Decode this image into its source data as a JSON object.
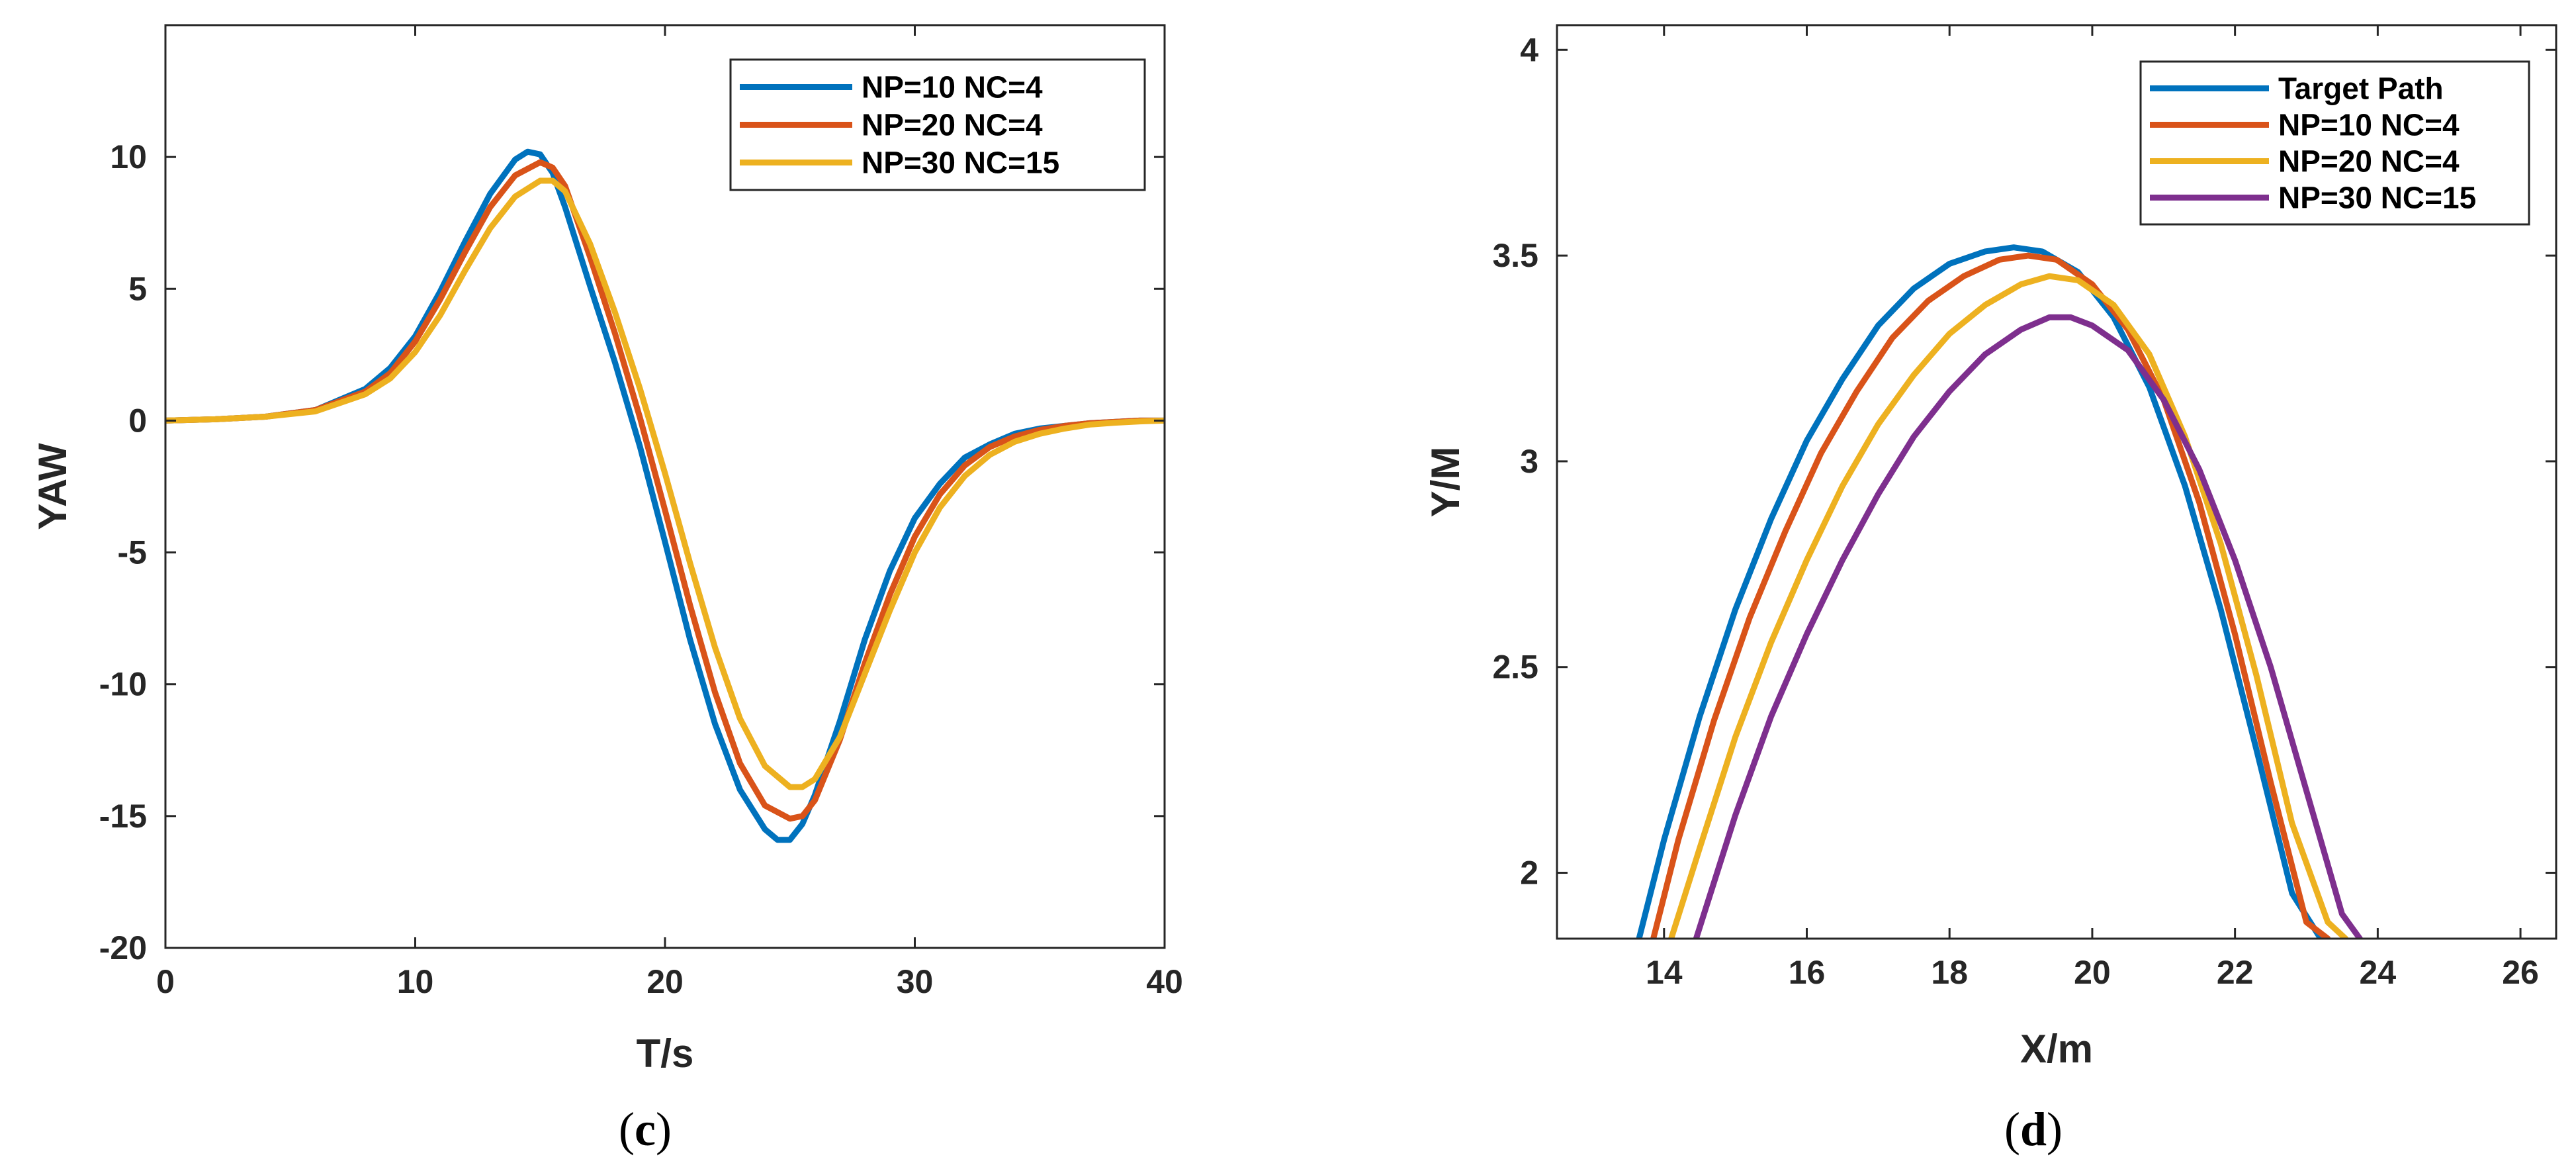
{
  "colors": {
    "blue": "#0072BD",
    "orange": "#D95319",
    "yellow": "#EDB120",
    "purple": "#7E2F8E",
    "axis": "#262626"
  },
  "chart_data": [
    {
      "id": "c",
      "type": "line",
      "caption_open": "(",
      "caption_letter": "c",
      "caption_close": ")",
      "title": "",
      "xlabel": "T/s",
      "ylabel": "YAW",
      "xlim": [
        0,
        40
      ],
      "ylim": [
        -20,
        15
      ],
      "xticks": [
        0,
        10,
        20,
        30,
        40
      ],
      "yticks": [
        -20,
        -15,
        -10,
        -5,
        0,
        5,
        10
      ],
      "grid": false,
      "legend_position": "top-right",
      "series": [
        {
          "name": "NP=10 NC=4",
          "color": "#0072BD",
          "x": [
            0,
            2,
            4,
            6,
            8,
            9,
            10,
            11,
            12,
            13,
            14,
            14.5,
            15,
            15.5,
            16,
            17,
            18,
            19,
            20,
            21,
            22,
            23,
            24,
            24.5,
            25,
            25.5,
            26,
            27,
            28,
            29,
            30,
            31,
            32,
            33,
            34,
            35,
            36,
            37,
            38,
            39,
            40
          ],
          "y": [
            0,
            0.05,
            0.15,
            0.4,
            1.2,
            2.0,
            3.2,
            4.9,
            6.8,
            8.6,
            9.9,
            10.2,
            10.1,
            9.4,
            8.1,
            5.1,
            2.2,
            -1.0,
            -4.6,
            -8.3,
            -11.5,
            -14.0,
            -15.5,
            -15.9,
            -15.9,
            -15.3,
            -14.2,
            -11.4,
            -8.3,
            -5.7,
            -3.7,
            -2.4,
            -1.4,
            -0.9,
            -0.5,
            -0.3,
            -0.2,
            -0.1,
            -0.05,
            0,
            0
          ]
        },
        {
          "name": "NP=20 NC=4",
          "color": "#D95319",
          "x": [
            0,
            2,
            4,
            6,
            8,
            9,
            10,
            11,
            12,
            13,
            14,
            15,
            15.5,
            16,
            17,
            18,
            19,
            20,
            21,
            22,
            23,
            24,
            25,
            25.5,
            26,
            27,
            28,
            29,
            30,
            31,
            32,
            33,
            34,
            35,
            36,
            37,
            38,
            39,
            40
          ],
          "y": [
            0,
            0.05,
            0.15,
            0.4,
            1.1,
            1.8,
            3.0,
            4.6,
            6.4,
            8.1,
            9.3,
            9.8,
            9.6,
            8.9,
            6.2,
            3.3,
            0.1,
            -3.4,
            -7.0,
            -10.3,
            -13.0,
            -14.6,
            -15.1,
            -15.0,
            -14.4,
            -12.1,
            -9.2,
            -6.6,
            -4.4,
            -2.8,
            -1.7,
            -1.0,
            -0.6,
            -0.35,
            -0.2,
            -0.1,
            -0.05,
            0,
            0
          ]
        },
        {
          "name": "NP=30 NC=15",
          "color": "#EDB120",
          "x": [
            0,
            2,
            4,
            6,
            8,
            9,
            10,
            11,
            12,
            13,
            14,
            15,
            15.5,
            16,
            17,
            18,
            19,
            20,
            21,
            22,
            23,
            24,
            25,
            25.5,
            26,
            27,
            28,
            29,
            30,
            31,
            32,
            33,
            34,
            35,
            36,
            37,
            38,
            39,
            40
          ],
          "y": [
            0,
            0.05,
            0.15,
            0.35,
            1.0,
            1.6,
            2.6,
            4.0,
            5.7,
            7.3,
            8.5,
            9.1,
            9.1,
            8.7,
            6.7,
            4.1,
            1.2,
            -2.0,
            -5.4,
            -8.6,
            -11.3,
            -13.1,
            -13.9,
            -13.9,
            -13.6,
            -12.0,
            -9.6,
            -7.2,
            -5.0,
            -3.3,
            -2.1,
            -1.3,
            -0.8,
            -0.5,
            -0.3,
            -0.15,
            -0.08,
            -0.03,
            0
          ]
        }
      ]
    },
    {
      "id": "d",
      "type": "line",
      "caption_open": "(",
      "caption_letter": "d",
      "caption_close": ")",
      "title": "",
      "xlabel": "X/m",
      "ylabel": "Y/M",
      "xlim": [
        12.5,
        26.5
      ],
      "ylim": [
        1.84,
        4.06
      ],
      "xticks": [
        14,
        16,
        18,
        20,
        22,
        24,
        26
      ],
      "yticks": [
        2,
        2.5,
        3,
        3.5,
        4
      ],
      "grid": false,
      "legend_position": "top-right",
      "series": [
        {
          "name": "Target Path",
          "color": "#0072BD",
          "x": [
            13.65,
            14.0,
            14.5,
            15.0,
            15.5,
            16.0,
            16.5,
            17.0,
            17.5,
            18.0,
            18.5,
            18.9,
            19.3,
            19.8,
            20.3,
            20.8,
            21.3,
            21.8,
            22.3,
            22.8,
            23.2
          ],
          "y": [
            1.84,
            2.08,
            2.38,
            2.64,
            2.86,
            3.05,
            3.2,
            3.33,
            3.42,
            3.48,
            3.51,
            3.52,
            3.51,
            3.46,
            3.35,
            3.18,
            2.94,
            2.64,
            2.3,
            1.95,
            1.84
          ]
        },
        {
          "name": "NP=10 NC=4",
          "color": "#D95319",
          "x": [
            13.85,
            14.2,
            14.7,
            15.2,
            15.7,
            16.2,
            16.7,
            17.2,
            17.7,
            18.2,
            18.7,
            19.1,
            19.5,
            20.0,
            20.5,
            21.0,
            21.5,
            22.0,
            22.5,
            23.0,
            23.3
          ],
          "y": [
            1.84,
            2.08,
            2.37,
            2.62,
            2.83,
            3.02,
            3.17,
            3.3,
            3.39,
            3.45,
            3.49,
            3.5,
            3.49,
            3.43,
            3.32,
            3.15,
            2.9,
            2.58,
            2.22,
            1.88,
            1.84
          ]
        },
        {
          "name": "NP=20 NC=4",
          "color": "#EDB120",
          "x": [
            14.1,
            14.5,
            15.0,
            15.5,
            16.0,
            16.5,
            17.0,
            17.5,
            18.0,
            18.5,
            19.0,
            19.4,
            19.8,
            20.3,
            20.8,
            21.3,
            21.8,
            22.3,
            22.8,
            23.3,
            23.55
          ],
          "y": [
            1.84,
            2.06,
            2.33,
            2.56,
            2.76,
            2.94,
            3.09,
            3.21,
            3.31,
            3.38,
            3.43,
            3.45,
            3.44,
            3.38,
            3.26,
            3.06,
            2.8,
            2.48,
            2.12,
            1.88,
            1.84
          ]
        },
        {
          "name": "NP=30 NC=15",
          "color": "#7E2F8E",
          "x": [
            14.45,
            15.0,
            15.5,
            16.0,
            16.5,
            17.0,
            17.5,
            18.0,
            18.5,
            19.0,
            19.4,
            19.7,
            20.0,
            20.5,
            21.0,
            21.5,
            22.0,
            22.5,
            23.0,
            23.5,
            23.75
          ],
          "y": [
            1.84,
            2.14,
            2.38,
            2.58,
            2.76,
            2.92,
            3.06,
            3.17,
            3.26,
            3.32,
            3.35,
            3.35,
            3.33,
            3.27,
            3.15,
            2.98,
            2.76,
            2.5,
            2.2,
            1.9,
            1.84
          ]
        }
      ]
    }
  ]
}
